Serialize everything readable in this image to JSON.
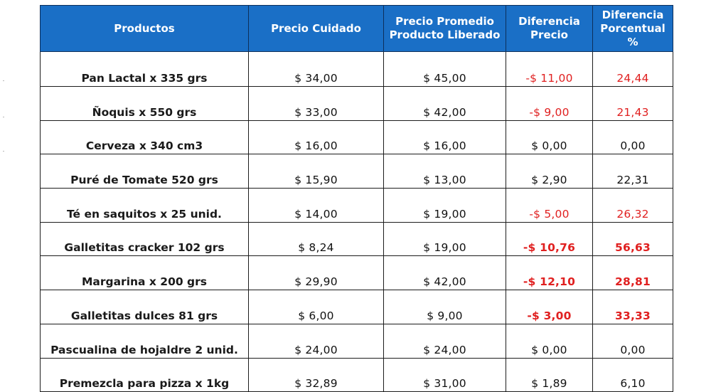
{
  "headers": [
    "Productos",
    "Precio Cuidado",
    "Precio Promedio Producto Liberado",
    "Diferencia Precio",
    "Diferencia Porcentual %"
  ],
  "rows": [
    {
      "producto": "Pan Lactal x 335 grs",
      "precio_cuidado": "$ 34,00",
      "precio_promedio": "$ 45,00",
      "diferencia_precio": "-$ 11,00",
      "diferencia_porcentual": "24,44",
      "color": "#e02020",
      "bold": false
    },
    {
      "producto": "Ñoquis x 550 grs",
      "precio_cuidado": "$ 33,00",
      "precio_promedio": "$ 42,00",
      "diferencia_precio": "-$ 9,00",
      "diferencia_porcentual": "21,43",
      "color": "#e02020",
      "bold": false
    },
    {
      "producto": "Cerveza x 340 cm3",
      "precio_cuidado": "$ 16,00",
      "precio_promedio": "$ 16,00",
      "diferencia_precio": "$ 0,00",
      "diferencia_porcentual": "0,00",
      "color": "#111111",
      "bold": false
    },
    {
      "producto": "Puré de Tomate 520 grs",
      "precio_cuidado": "$ 15,90",
      "precio_promedio": "$ 13,00",
      "diferencia_precio": "$ 2,90",
      "diferencia_porcentual": "22,31",
      "color": "#111111",
      "bold": false
    },
    {
      "producto": "Té en saquitos x 25 unid.",
      "precio_cuidado": "$ 14,00",
      "precio_promedio": "$ 19,00",
      "diferencia_precio": "-$ 5,00",
      "diferencia_porcentual": "26,32",
      "color": "#e02020",
      "bold": false
    },
    {
      "producto": "Galletitas cracker 102 grs",
      "precio_cuidado": "$ 8,24",
      "precio_promedio": "$ 19,00",
      "diferencia_precio": "-$ 10,76",
      "diferencia_porcentual": "56,63",
      "color": "#e02020",
      "bold": true
    },
    {
      "producto": "Margarina x 200 grs",
      "precio_cuidado": "$ 29,90",
      "precio_promedio": "$ 42,00",
      "diferencia_precio": "-$ 12,10",
      "diferencia_porcentual": "28,81",
      "color": "#e02020",
      "bold": true
    },
    {
      "producto": "Galletitas dulces 81 grs",
      "precio_cuidado": "$ 6,00",
      "precio_promedio": "$ 9,00",
      "diferencia_precio": "-$ 3,00",
      "diferencia_porcentual": "33,33",
      "color": "#e02020",
      "bold": true
    },
    {
      "producto": "Pascualina de hojaldre 2 unid.",
      "precio_cuidado": "$ 24,00",
      "precio_promedio": "$ 24,00",
      "diferencia_precio": "$ 0,00",
      "diferencia_porcentual": "0,00",
      "color": "#111111",
      "bold": false
    },
    {
      "producto": "Premezcla para pizza  x 1kg",
      "precio_cuidado": "$ 32,89",
      "precio_promedio": "$ 31,00",
      "diferencia_precio": "$ 1,89",
      "diferencia_porcentual": "6,10",
      "color": "#111111",
      "bold": false
    }
  ],
  "colors": {
    "header_bg": "#1a6fc6",
    "header_text": "#ffffff",
    "negative": "#e02020",
    "border": "#1c1c1c"
  }
}
